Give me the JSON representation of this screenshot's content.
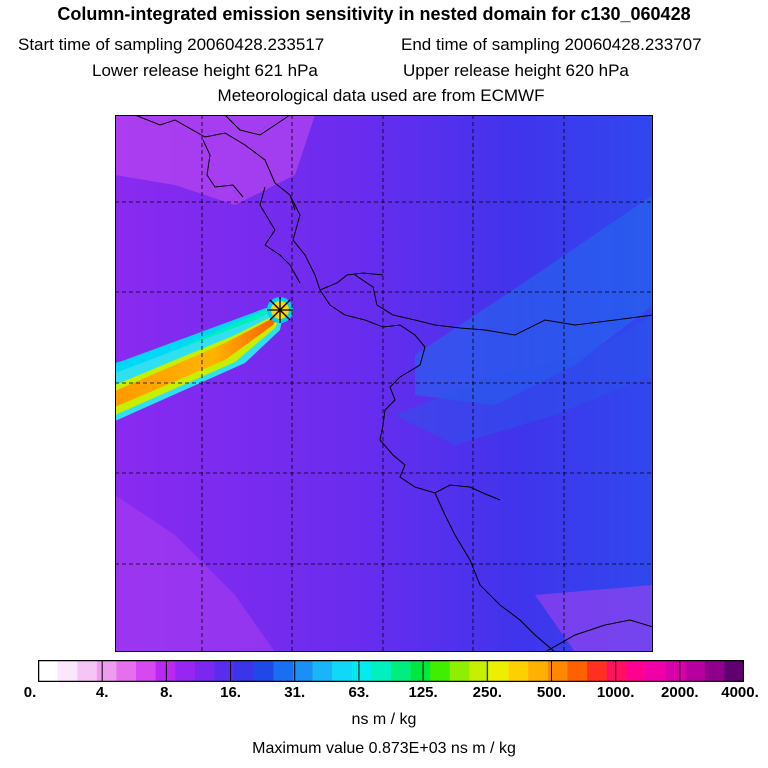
{
  "title": "Column-integrated emission sensitivity in nested domain for c130_060428",
  "sampling": {
    "start": "Start time of sampling 20060428.233517",
    "end": "End time of sampling 20060428.233707"
  },
  "release": {
    "lower": "Lower release height  621 hPa",
    "upper": "Upper release height  620 hPa"
  },
  "met": "Meteorological data used are from ECMWF",
  "colorbar": {
    "ticks": [
      "0.",
      "4.",
      "8.",
      "16.",
      "31.",
      "63.",
      "125.",
      "250.",
      "500.",
      "1000.",
      "2000.",
      "4000."
    ],
    "colors": [
      "#ffffff",
      "#fbe6fb",
      "#f5c6f5",
      "#ee9cee",
      "#e570ee",
      "#d648f0",
      "#bb28f2",
      "#9826f2",
      "#7a28f0",
      "#5a2cee",
      "#3a34ea",
      "#2048e8",
      "#1a6ef2",
      "#1a90f6",
      "#1ab4f8",
      "#10d8f8",
      "#00ecee",
      "#00f0c0",
      "#00ee80",
      "#00e840",
      "#40ee00",
      "#90ee00",
      "#c8ee00",
      "#eeee00",
      "#ffd000",
      "#ffb000",
      "#ff8800",
      "#ff6000",
      "#ff3020",
      "#ff1060",
      "#ff0090",
      "#f000a8",
      "#d800a8",
      "#b800a0",
      "#90008c",
      "#600070"
    ],
    "units": "ns m / kg"
  },
  "max_value": "Maximum value  0.873E+03 ns m / kg"
}
